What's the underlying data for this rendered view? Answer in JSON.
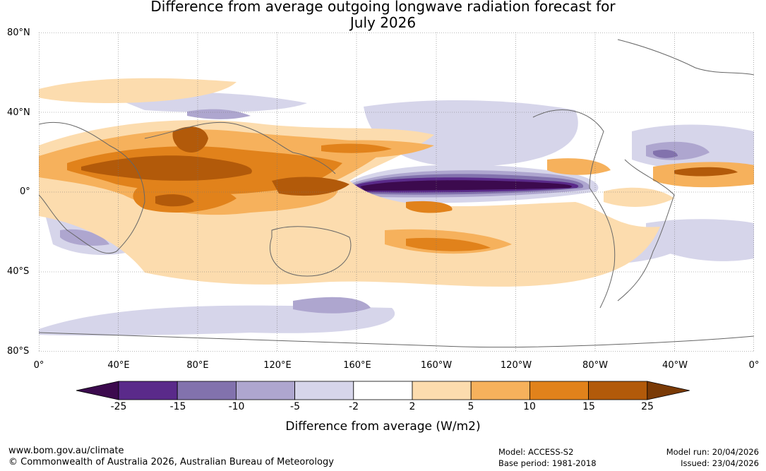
{
  "title_line1": "Difference from average outgoing longwave radiation forecast for",
  "title_line2": "July 2026",
  "lat_labels": [
    "80°N",
    "40°N",
    "0°",
    "40°S",
    "80°S"
  ],
  "lon_labels": [
    "0°",
    "40°E",
    "80°E",
    "120°E",
    "160°E",
    "160°W",
    "120°W",
    "80°W",
    "40°W",
    "0°"
  ],
  "colorbar": {
    "ticks": [
      "-25",
      "-15",
      "-10",
      "-5",
      "-2",
      "2",
      "5",
      "10",
      "15",
      "25"
    ],
    "colors": [
      "#3c0a4e",
      "#5a2a8a",
      "#8272ad",
      "#aea6cf",
      "#d6d5ea",
      "#ffffff",
      "#fcdcae",
      "#f6b15c",
      "#e1821b",
      "#b25a0a",
      "#7a3a06"
    ],
    "title": "Difference from average (W/m2)"
  },
  "footer": {
    "url": "www.bom.gov.au/climate",
    "copyright": "© Commonwealth of Australia 2026, Australian Bureau of Meteorology",
    "model": "Model: ACCESS-S2",
    "base_period": "Base period: 1981-2018",
    "model_run": "Model run: 20/04/2026",
    "issued": "Issued: 23/04/2026"
  }
}
